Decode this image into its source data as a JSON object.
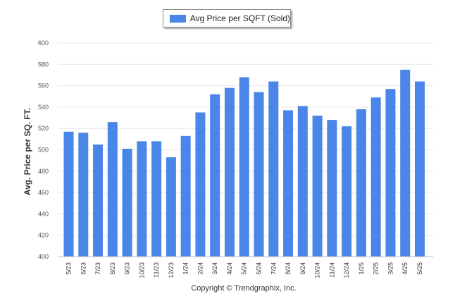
{
  "chart_data": {
    "type": "bar",
    "title": "",
    "legend": {
      "entries": [
        "Avg Price per SQFT (Sold)"
      ],
      "placement": "top-center"
    },
    "ylabel": "Avg. Price per SQ. FT.",
    "xlabel": "",
    "ylim": [
      400,
      600
    ],
    "yticks": [
      400,
      420,
      440,
      460,
      480,
      500,
      520,
      540,
      560,
      580,
      600
    ],
    "grid": true,
    "categories": [
      "5/23",
      "6/23",
      "7/23",
      "8/23",
      "9/23",
      "10/23",
      "11/23",
      "12/23",
      "1/24",
      "2/24",
      "3/24",
      "4/24",
      "5/24",
      "6/24",
      "7/24",
      "8/24",
      "9/24",
      "10/24",
      "11/24",
      "12/24",
      "1/25",
      "2/25",
      "3/25",
      "4/25",
      "5/25"
    ],
    "series": [
      {
        "name": "Avg Price per SQFT (Sold)",
        "color": "#4a86e8",
        "values": [
          517,
          516,
          505,
          526,
          501,
          508,
          508,
          493,
          513,
          535,
          552,
          558,
          568,
          554,
          564,
          537,
          541,
          532,
          528,
          522,
          538,
          549,
          557,
          575,
          564
        ]
      }
    ]
  },
  "footer": {
    "credit": "Copyright © Trendgraphix, Inc."
  }
}
